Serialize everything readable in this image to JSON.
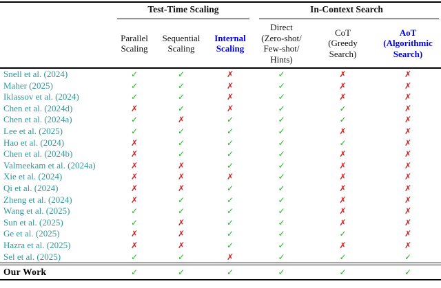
{
  "colors": {
    "accent_blue": "#0000EE",
    "citation_teal": "#339696",
    "check_green": "#22B222",
    "cross_red": "#CC2222"
  },
  "icons": {
    "check": "✓",
    "cross": "✗"
  },
  "title_groups": [
    {
      "label": "Test-Time Scaling"
    },
    {
      "label": "In-Context Search"
    }
  ],
  "columns": [
    {
      "label": "Parallel\nScaling",
      "accent": false
    },
    {
      "label": "Sequential\nScaling",
      "accent": false
    },
    {
      "label": "Internal\nScaling",
      "accent": true
    },
    {
      "label": "Direct\n(Zero-shot/\nFew-shot/\nHints)",
      "accent": false
    },
    {
      "label": "CoT\n(Greedy\nSearch)",
      "accent": false
    },
    {
      "label": "AoT\n(Algorithmic\nSearch)",
      "accent": true
    }
  ],
  "rows": [
    {
      "citation": "Snell et al. (2024)",
      "marks": [
        "check",
        "check",
        "cross",
        "check",
        "cross",
        "cross"
      ]
    },
    {
      "citation": "Maher (2025)",
      "marks": [
        "check",
        "check",
        "cross",
        "check",
        "cross",
        "cross"
      ]
    },
    {
      "citation": "Iklassov et al. (2024)",
      "marks": [
        "check",
        "check",
        "cross",
        "check",
        "cross",
        "cross"
      ]
    },
    {
      "citation": "Chen et al. (2024d)",
      "marks": [
        "cross",
        "check",
        "cross",
        "check",
        "check",
        "cross"
      ]
    },
    {
      "citation": "Chen et al. (2024a)",
      "marks": [
        "check",
        "cross",
        "check",
        "check",
        "check",
        "cross"
      ]
    },
    {
      "citation": "Lee et al. (2025)",
      "marks": [
        "check",
        "check",
        "check",
        "check",
        "cross",
        "cross"
      ]
    },
    {
      "citation": "Hao et al. (2024)",
      "marks": [
        "cross",
        "check",
        "check",
        "check",
        "check",
        "cross"
      ]
    },
    {
      "citation": "Chen et al. (2024b)",
      "marks": [
        "cross",
        "check",
        "check",
        "check",
        "cross",
        "cross"
      ]
    },
    {
      "citation": "Valmeekam et al. (2024a)",
      "marks": [
        "cross",
        "cross",
        "check",
        "check",
        "cross",
        "cross"
      ]
    },
    {
      "citation": "Xie et al. (2024)",
      "marks": [
        "cross",
        "cross",
        "cross",
        "check",
        "cross",
        "cross"
      ]
    },
    {
      "citation": "Qi et al. (2024)",
      "marks": [
        "cross",
        "cross",
        "check",
        "check",
        "cross",
        "cross"
      ]
    },
    {
      "citation": "Zheng et al. (2024)",
      "marks": [
        "cross",
        "check",
        "check",
        "check",
        "cross",
        "cross"
      ]
    },
    {
      "citation": "Wang et al. (2025)",
      "marks": [
        "check",
        "check",
        "check",
        "check",
        "cross",
        "cross"
      ]
    },
    {
      "citation": "Sun et al. (2025)",
      "marks": [
        "check",
        "cross",
        "check",
        "check",
        "cross",
        "cross"
      ]
    },
    {
      "citation": "Ge et al. (2025)",
      "marks": [
        "cross",
        "cross",
        "check",
        "check",
        "check",
        "cross"
      ]
    },
    {
      "citation": "Hazra et al. (2025)",
      "marks": [
        "cross",
        "cross",
        "check",
        "check",
        "cross",
        "cross"
      ]
    },
    {
      "citation": "Sel et al. (2025)",
      "marks": [
        "check",
        "check",
        "cross",
        "check",
        "check",
        "check"
      ]
    }
  ],
  "final_row": {
    "label": "Our Work",
    "marks": [
      "check",
      "check",
      "check",
      "check",
      "check",
      "check"
    ]
  }
}
